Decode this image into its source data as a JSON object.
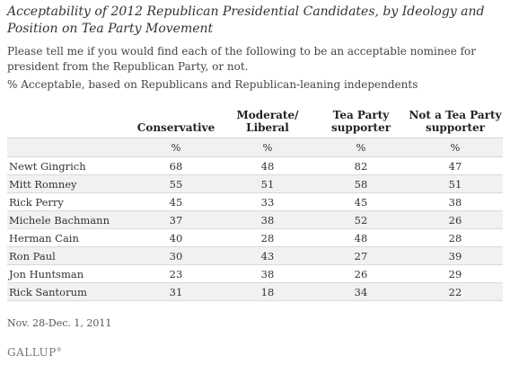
{
  "title": "Acceptability of 2012 Republican Presidential Candidates, by Ideology and Position on Tea Party Movement",
  "question": "Please tell me if you would find each of the following to be an acceptable nominee for president from the Republican Party, or not.",
  "subtitle": "% Acceptable, based on Republicans and Republican-leaning independents",
  "footnote": "Nov. 28-Dec. 1, 2011",
  "logo_text": "GALLUP",
  "logo_mark": "®",
  "chart_data": {
    "type": "table",
    "columns": [
      {
        "label_line1": "Conservative",
        "label_line2": ""
      },
      {
        "label_line1": "Moderate/",
        "label_line2": "Liberal"
      },
      {
        "label_line1": "Tea Party",
        "label_line2": "supporter"
      },
      {
        "label_line1": "Not a Tea Party",
        "label_line2": "supporter"
      }
    ],
    "unit_label": "%",
    "rows": [
      {
        "name": "Newt Gingrich",
        "values": [
          68,
          48,
          82,
          47
        ]
      },
      {
        "name": "Mitt Romney",
        "values": [
          55,
          51,
          58,
          51
        ]
      },
      {
        "name": "Rick Perry",
        "values": [
          45,
          33,
          45,
          38
        ]
      },
      {
        "name": "Michele Bachmann",
        "values": [
          37,
          38,
          52,
          26
        ]
      },
      {
        "name": "Herman Cain",
        "values": [
          40,
          28,
          48,
          28
        ]
      },
      {
        "name": "Ron Paul",
        "values": [
          30,
          43,
          27,
          39
        ]
      },
      {
        "name": "Jon Huntsman",
        "values": [
          23,
          38,
          26,
          29
        ]
      },
      {
        "name": "Rick Santorum",
        "values": [
          31,
          18,
          34,
          22
        ]
      }
    ]
  }
}
